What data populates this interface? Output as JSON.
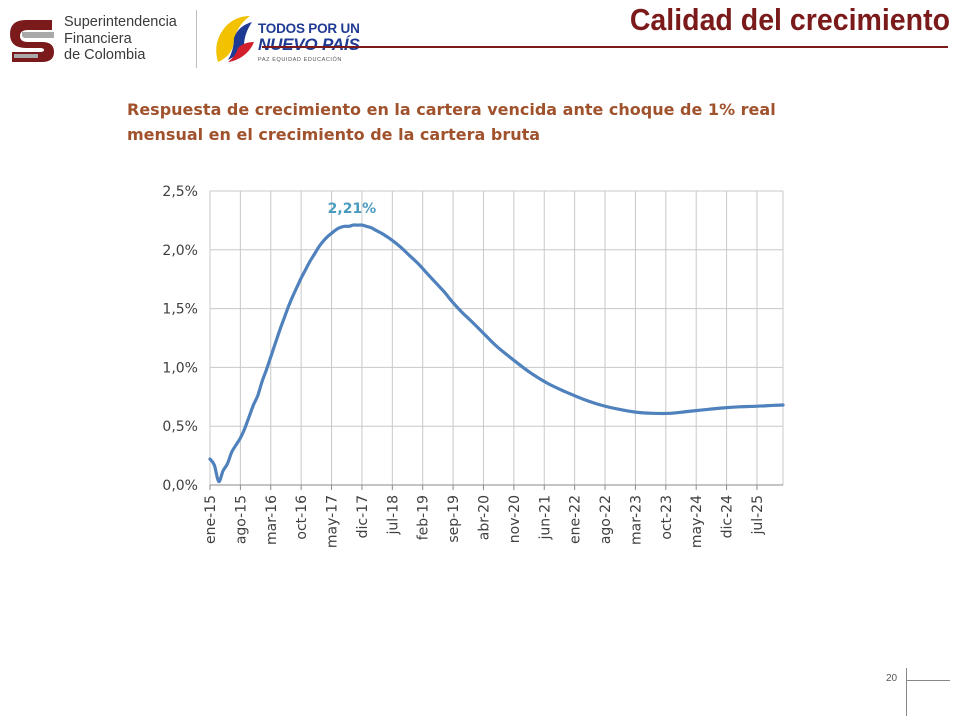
{
  "header": {
    "org_name_lines": [
      "Superintendencia",
      "Financiera",
      "de Colombia"
    ],
    "gov_title_lines": [
      "TODOS POR UN",
      "NUEVO PAÍS"
    ],
    "gov_tagline": "PAZ  EQUIDAD  EDUCACIÓN",
    "page_title": "Calidad del crecimiento"
  },
  "subtitle_lines": [
    "Respuesta de crecimiento en la cartera vencida ante choque de 1% real",
    "mensual en el crecimiento de la cartera bruta"
  ],
  "colors": {
    "title": "#7a1a1a",
    "subtitle": "#a0522d",
    "series": "#4f81bd",
    "annotation": "#4a9bc0",
    "grid": "#c8c8c8"
  },
  "chart_data": {
    "type": "line",
    "title": "",
    "xlabel": "",
    "ylabel": "",
    "ylim": [
      0,
      2.5
    ],
    "yticks": [
      0,
      0.5,
      1.0,
      1.5,
      2.0,
      2.5
    ],
    "ytick_labels": [
      "0,0%",
      "0,5%",
      "1,0%",
      "1,5%",
      "2,0%",
      "2,5%"
    ],
    "x_start": "2015-01",
    "x_end": "2026-01",
    "xtick_labels": [
      "ene-15",
      "ago-15",
      "mar-16",
      "oct-16",
      "may-17",
      "dic-17",
      "jul-18",
      "feb-19",
      "sep-19",
      "abr-20",
      "nov-20",
      "jun-21",
      "ene-22",
      "ago-22",
      "mar-23",
      "oct-23",
      "may-24",
      "dic-24",
      "jul-25"
    ],
    "grid": true,
    "legend": "none",
    "annotation": {
      "label": "2,21%",
      "x": "2017-12",
      "y": 2.21
    },
    "series": [
      {
        "x": [
          "2015-01",
          "2015-02",
          "2015-03",
          "2015-04",
          "2015-05",
          "2015-06",
          "2015-07",
          "2015-08",
          "2015-09",
          "2015-10",
          "2015-11",
          "2015-12",
          "2016-01",
          "2016-02",
          "2016-03",
          "2016-04",
          "2016-05",
          "2016-06",
          "2016-07",
          "2016-08",
          "2016-09",
          "2016-10",
          "2016-11",
          "2016-12",
          "2017-01",
          "2017-02",
          "2017-03",
          "2017-04",
          "2017-05",
          "2017-06",
          "2017-07",
          "2017-08",
          "2017-09",
          "2017-10",
          "2017-11",
          "2017-12",
          "2018-01",
          "2018-02",
          "2018-03",
          "2018-05",
          "2018-07",
          "2018-09",
          "2018-11",
          "2019-01",
          "2019-03",
          "2019-05",
          "2019-07",
          "2019-09",
          "2019-11",
          "2020-01",
          "2020-04",
          "2020-07",
          "2020-11",
          "2021-03",
          "2021-07",
          "2021-11",
          "2022-03",
          "2022-07",
          "2022-11",
          "2023-03",
          "2023-07",
          "2023-11",
          "2024-03",
          "2024-07",
          "2024-11",
          "2025-03",
          "2025-07",
          "2025-11",
          "2026-01"
        ],
        "values": [
          0.22,
          0.17,
          0.03,
          0.12,
          0.18,
          0.28,
          0.34,
          0.4,
          0.48,
          0.58,
          0.68,
          0.76,
          0.88,
          0.98,
          1.09,
          1.2,
          1.31,
          1.41,
          1.51,
          1.6,
          1.68,
          1.76,
          1.83,
          1.9,
          1.96,
          2.02,
          2.07,
          2.11,
          2.14,
          2.17,
          2.19,
          2.2,
          2.2,
          2.21,
          2.21,
          2.21,
          2.2,
          2.19,
          2.17,
          2.13,
          2.08,
          2.02,
          1.95,
          1.88,
          1.8,
          1.72,
          1.64,
          1.55,
          1.47,
          1.4,
          1.29,
          1.18,
          1.06,
          0.95,
          0.86,
          0.79,
          0.73,
          0.68,
          0.645,
          0.62,
          0.61,
          0.61,
          0.625,
          0.64,
          0.655,
          0.665,
          0.67,
          0.678,
          0.68
        ]
      }
    ]
  },
  "footer": {
    "page_number": "20"
  }
}
